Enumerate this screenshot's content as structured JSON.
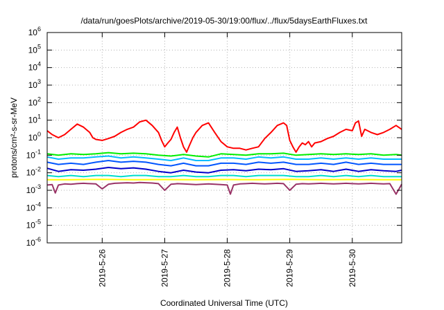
{
  "chart_data": {
    "type": "line",
    "title": "/data/run/goesPlots/archive/2019-05-30/19:00/flux/../flux/5daysEarthFluxes.txt",
    "xlabel": "Coordinated Universal Time (UTC)",
    "ylabel": "protons/cm²-s-sr-MeV",
    "y_scale": "log",
    "ylim": [
      1e-06,
      1000000
    ],
    "y_ticks": [
      {
        "base": "10",
        "exp": "6",
        "value": 1000000
      },
      {
        "base": "10",
        "exp": "5",
        "value": 100000
      },
      {
        "base": "10",
        "exp": "4",
        "value": 10000
      },
      {
        "base": "10",
        "exp": "3",
        "value": 1000
      },
      {
        "base": "10",
        "exp": "2",
        "value": 100
      },
      {
        "base": "10",
        "exp": "1",
        "value": 10
      },
      {
        "base": "10",
        "exp": "0",
        "value": 1
      },
      {
        "base": "10",
        "exp": "-1",
        "value": 0.1
      },
      {
        "base": "10",
        "exp": "-2",
        "value": 0.01
      },
      {
        "base": "10",
        "exp": "-3",
        "value": 0.001
      },
      {
        "base": "10",
        "exp": "-4",
        "value": 0.0001
      },
      {
        "base": "10",
        "exp": "-5",
        "value": 1e-05
      },
      {
        "base": "10",
        "exp": "-6",
        "value": 1e-06
      }
    ],
    "xlim": [
      -0.88,
      4.79
    ],
    "x_ticks": [
      {
        "label": "2019-5-26",
        "value": 0
      },
      {
        "label": "2019-5-27",
        "value": 1
      },
      {
        "label": "2019-5-28",
        "value": 2
      },
      {
        "label": "2019-5-29",
        "value": 3
      },
      {
        "label": "2019-5-30",
        "value": 4
      }
    ],
    "grid": true,
    "series": [
      {
        "color": "#ff0000",
        "x": [
          -0.88,
          -0.8,
          -0.7,
          -0.6,
          -0.5,
          -0.4,
          -0.3,
          -0.2,
          -0.15,
          -0.1,
          0,
          0.1,
          0.2,
          0.3,
          0.4,
          0.5,
          0.6,
          0.7,
          0.8,
          0.9,
          0.95,
          1,
          1.05,
          1.1,
          1.15,
          1.2,
          1.25,
          1.3,
          1.35,
          1.4,
          1.45,
          1.5,
          1.6,
          1.7,
          1.8,
          1.9,
          2,
          2.1,
          2.2,
          2.3,
          2.4,
          2.5,
          2.6,
          2.7,
          2.8,
          2.9,
          2.95,
          3,
          3.05,
          3.1,
          3.15,
          3.2,
          3.25,
          3.3,
          3.35,
          3.4,
          3.5,
          3.6,
          3.7,
          3.8,
          3.9,
          4,
          4.05,
          4.1,
          4.15,
          4.2,
          4.3,
          4.4,
          4.5,
          4.6,
          4.7,
          4.79
        ],
        "y": [
          2.5,
          1.5,
          1,
          1.5,
          3,
          6,
          4,
          2,
          1,
          0.8,
          0.7,
          0.9,
          1.2,
          2,
          3,
          4,
          8,
          10,
          5,
          2,
          0.7,
          0.3,
          0.5,
          0.8,
          2,
          4,
          1,
          0.3,
          0.15,
          0.4,
          1,
          2,
          5,
          7,
          2,
          0.6,
          0.3,
          0.25,
          0.25,
          0.2,
          0.25,
          0.3,
          0.9,
          2,
          5,
          7,
          5,
          0.7,
          0.3,
          0.15,
          0.3,
          0.5,
          0.4,
          0.6,
          0.3,
          0.5,
          0.6,
          0.9,
          1.2,
          2,
          3,
          2.5,
          7,
          9,
          1.2,
          3,
          2,
          1.5,
          2,
          3,
          5,
          3
        ]
      },
      {
        "color": "#00ee00",
        "x": [
          -0.88,
          -0.7,
          -0.5,
          -0.3,
          -0.1,
          0.1,
          0.3,
          0.5,
          0.7,
          0.9,
          1.1,
          1.3,
          1.5,
          1.7,
          1.9,
          2.1,
          2.3,
          2.5,
          2.7,
          2.9,
          3.1,
          3.3,
          3.5,
          3.7,
          3.9,
          4.1,
          4.3,
          4.5,
          4.7,
          4.79
        ],
        "y": [
          0.12,
          0.1,
          0.12,
          0.11,
          0.12,
          0.14,
          0.12,
          0.13,
          0.12,
          0.1,
          0.09,
          0.11,
          0.09,
          0.08,
          0.12,
          0.11,
          0.1,
          0.12,
          0.12,
          0.13,
          0.1,
          0.11,
          0.12,
          0.11,
          0.12,
          0.11,
          0.12,
          0.1,
          0.11,
          0.1
        ]
      },
      {
        "color": "#00bbff",
        "x": [
          -0.88,
          -0.7,
          -0.5,
          -0.3,
          -0.1,
          0.1,
          0.3,
          0.5,
          0.7,
          0.9,
          1.1,
          1.3,
          1.5,
          1.7,
          1.9,
          2.1,
          2.3,
          2.5,
          2.7,
          2.9,
          3.1,
          3.3,
          3.5,
          3.7,
          3.9,
          4.1,
          4.3,
          4.5,
          4.7,
          4.79
        ],
        "y": [
          0.08,
          0.06,
          0.07,
          0.07,
          0.08,
          0.09,
          0.07,
          0.08,
          0.07,
          0.06,
          0.05,
          0.07,
          0.05,
          0.05,
          0.07,
          0.07,
          0.06,
          0.08,
          0.07,
          0.08,
          0.06,
          0.06,
          0.07,
          0.06,
          0.07,
          0.06,
          0.07,
          0.06,
          0.06,
          0.06
        ]
      },
      {
        "color": "#0055ff",
        "x": [
          -0.88,
          -0.7,
          -0.5,
          -0.3,
          -0.1,
          0.1,
          0.3,
          0.5,
          0.7,
          0.9,
          1.1,
          1.3,
          1.5,
          1.7,
          1.9,
          2.1,
          2.3,
          2.5,
          2.7,
          2.9,
          3.1,
          3.3,
          3.5,
          3.7,
          3.9,
          4.1,
          4.3,
          4.5,
          4.7,
          4.79
        ],
        "y": [
          0.04,
          0.03,
          0.035,
          0.03,
          0.04,
          0.05,
          0.04,
          0.045,
          0.04,
          0.03,
          0.025,
          0.035,
          0.025,
          0.025,
          0.035,
          0.035,
          0.03,
          0.04,
          0.035,
          0.04,
          0.03,
          0.03,
          0.035,
          0.03,
          0.04,
          0.03,
          0.035,
          0.03,
          0.03,
          0.03
        ]
      },
      {
        "color": "#0000cc",
        "x": [
          -0.88,
          -0.7,
          -0.5,
          -0.3,
          -0.1,
          0.1,
          0.3,
          0.5,
          0.7,
          0.9,
          1.1,
          1.3,
          1.5,
          1.7,
          1.9,
          2.1,
          2.3,
          2.5,
          2.7,
          2.9,
          3.1,
          3.3,
          3.5,
          3.7,
          3.9,
          4.1,
          4.3,
          4.5,
          4.7,
          4.79
        ],
        "y": [
          0.018,
          0.012,
          0.015,
          0.014,
          0.016,
          0.02,
          0.017,
          0.019,
          0.016,
          0.012,
          0.01,
          0.014,
          0.011,
          0.01,
          0.014,
          0.015,
          0.013,
          0.016,
          0.015,
          0.017,
          0.012,
          0.013,
          0.015,
          0.012,
          0.016,
          0.012,
          0.015,
          0.013,
          0.012,
          0.014
        ]
      },
      {
        "color": "#00ddcc",
        "x": [
          -0.88,
          -0.7,
          -0.5,
          -0.3,
          -0.1,
          0.1,
          0.3,
          0.5,
          0.7,
          0.9,
          1.1,
          1.3,
          1.5,
          1.7,
          1.9,
          2.1,
          2.3,
          2.5,
          2.7,
          2.9,
          3.1,
          3.3,
          3.5,
          3.7,
          3.9,
          4.1,
          4.3,
          4.5,
          4.7,
          4.79
        ],
        "y": [
          0.007,
          0.006,
          0.007,
          0.006,
          0.007,
          0.007,
          0.006,
          0.007,
          0.007,
          0.006,
          0.006,
          0.007,
          0.006,
          0.006,
          0.007,
          0.007,
          0.006,
          0.007,
          0.007,
          0.007,
          0.006,
          0.006,
          0.007,
          0.006,
          0.007,
          0.006,
          0.007,
          0.006,
          0.006,
          0.006
        ]
      },
      {
        "color": "#ffff00",
        "x": [
          -0.88,
          -0.5,
          0,
          0.5,
          1,
          1.5,
          2,
          2.5,
          3,
          3.5,
          4,
          4.5,
          4.79
        ],
        "y": [
          0.004,
          0.004,
          0.0042,
          0.004,
          0.0041,
          0.004,
          0.0041,
          0.004,
          0.0042,
          0.004,
          0.0041,
          0.004,
          0.004
        ]
      },
      {
        "color": "#993366",
        "x": [
          -0.88,
          -0.8,
          -0.75,
          -0.7,
          -0.6,
          -0.5,
          -0.4,
          -0.3,
          -0.2,
          -0.1,
          0,
          0.1,
          0.2,
          0.3,
          0.4,
          0.5,
          0.6,
          0.7,
          0.8,
          0.9,
          1,
          1.1,
          1.2,
          1.3,
          1.4,
          1.5,
          1.6,
          1.7,
          1.8,
          1.9,
          2,
          2.05,
          2.1,
          2.2,
          2.3,
          2.4,
          2.5,
          2.6,
          2.7,
          2.8,
          2.9,
          3,
          3.1,
          3.2,
          3.3,
          3.4,
          3.5,
          3.6,
          3.7,
          3.8,
          3.9,
          4,
          4.1,
          4.2,
          4.3,
          4.4,
          4.5,
          4.6,
          4.7,
          4.79
        ],
        "y": [
          0.002,
          0.0021,
          0.0007,
          0.002,
          0.0023,
          0.0022,
          0.0024,
          0.0025,
          0.0024,
          0.0023,
          0.0012,
          0.0022,
          0.0025,
          0.0026,
          0.0027,
          0.0026,
          0.0028,
          0.0027,
          0.0026,
          0.0024,
          0.001,
          0.0022,
          0.0024,
          0.0023,
          0.0022,
          0.0021,
          0.0022,
          0.0023,
          0.0022,
          0.0021,
          0.002,
          0.0006,
          0.002,
          0.0023,
          0.0024,
          0.0025,
          0.0024,
          0.0023,
          0.0024,
          0.0025,
          0.0024,
          0.001,
          0.0022,
          0.0024,
          0.0023,
          0.0024,
          0.0025,
          0.0024,
          0.0023,
          0.0024,
          0.0025,
          0.0024,
          0.0023,
          0.0024,
          0.0025,
          0.0024,
          0.0023,
          0.0024,
          0.0006,
          0.0022
        ]
      }
    ]
  }
}
